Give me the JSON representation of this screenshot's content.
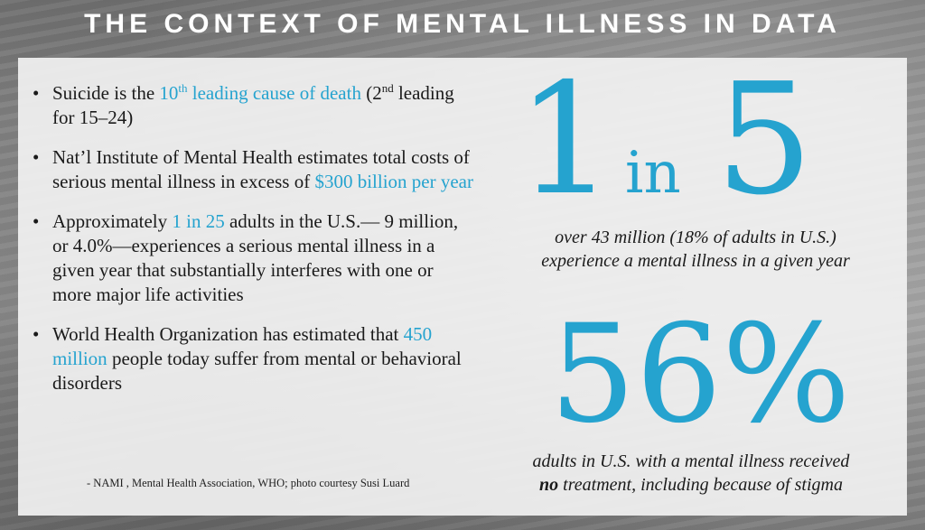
{
  "title": "THE CONTEXT OF MENTAL ILLNESS IN DATA",
  "bullets": {
    "b1": {
      "pre": "Suicide is the ",
      "hl": "10",
      "sup": "th",
      "hl2": " leading cause of death",
      "mid": " (2",
      "sup2": "nd",
      "post": " leading  for 15–24)"
    },
    "b2": {
      "pre": "Nat’l Institute of Mental Health estimates total costs of serious mental illness in excess of ",
      "hl": "$300 billion per year"
    },
    "b3": {
      "pre": "Approximately ",
      "hl": "1 in 25",
      "post": " adults in the U.S.— 9 million, or 4.0%—experiences a serious mental illness in a given year that substantially interferes with one or more major life activities"
    },
    "b4": {
      "pre": "World Health Organization has estimated that ",
      "hl": "450 million",
      "post": " people today suffer from mental or behavioral disorders"
    }
  },
  "source": "- NAMI , Mental Health Association, WHO; photo courtesy Susi Luard",
  "stat1": {
    "one": "1",
    "in": "in",
    "five": "5",
    "line1": "over 43 million (18% of adults in U.S.)",
    "line2": "experience a mental illness in a given year"
  },
  "stat2": {
    "value": "56%",
    "line1": "adults  in U.S. with a mental illness received",
    "bold": "no",
    "line2": " treatment, including because of stigma"
  },
  "colors": {
    "accent": "#25a3cf",
    "text": "#1a1a1a"
  }
}
